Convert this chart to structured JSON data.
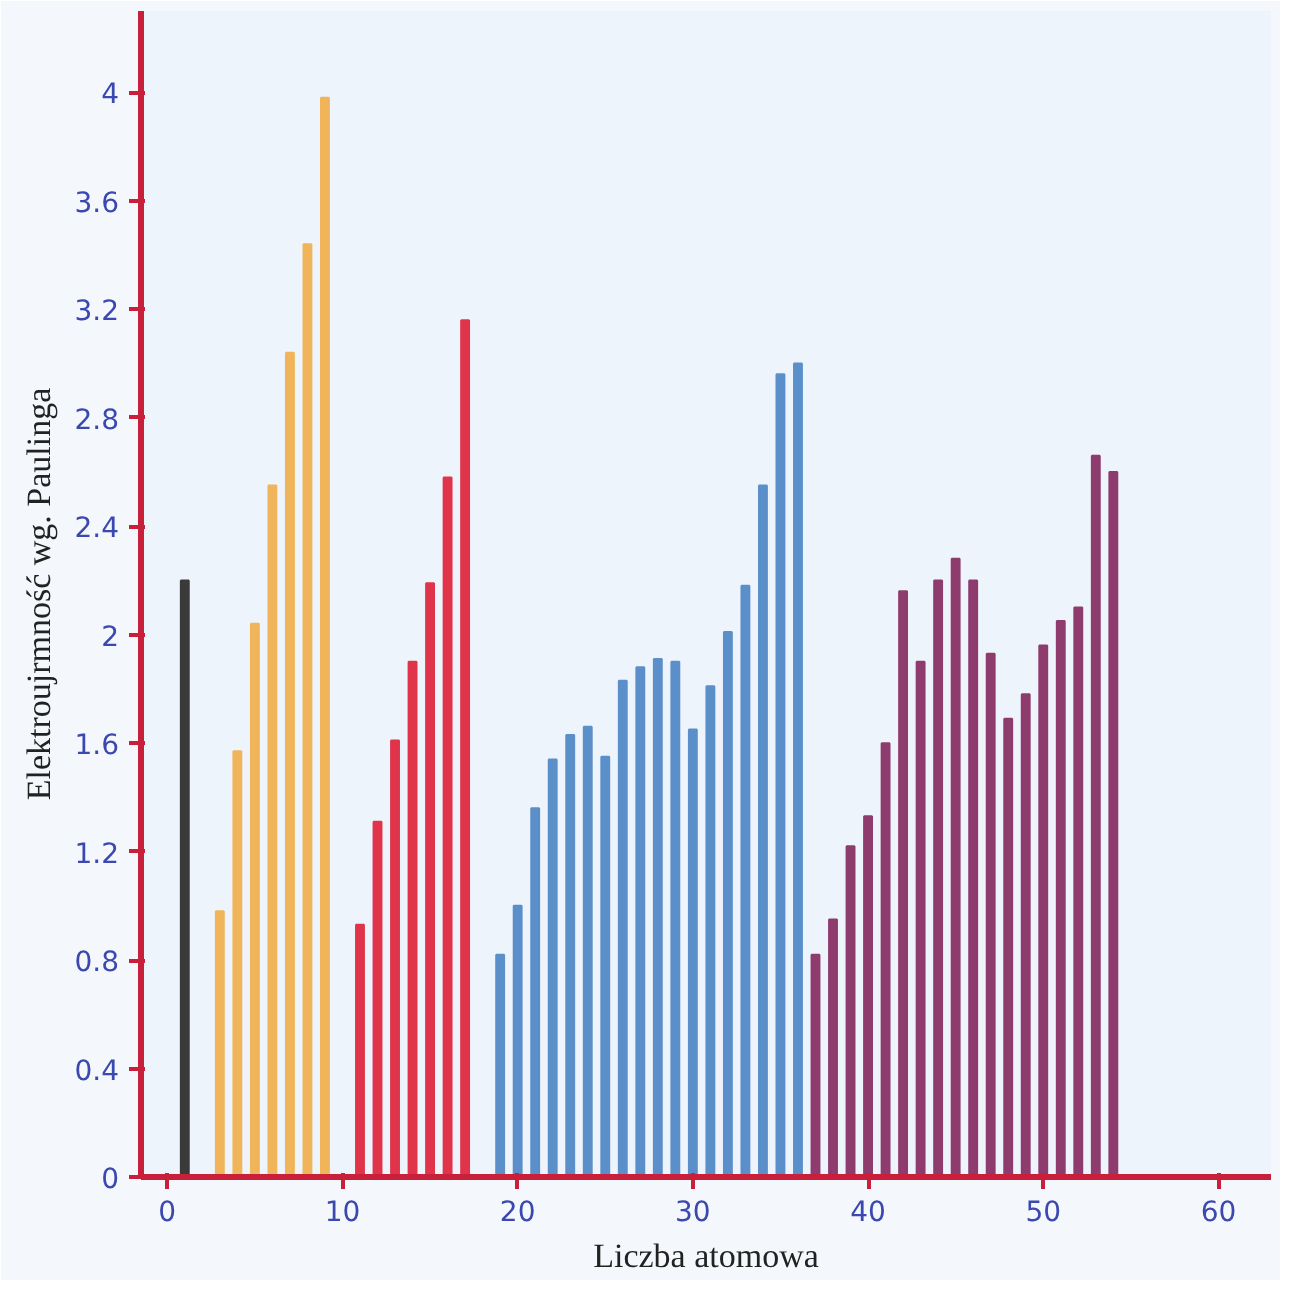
{
  "chart_data": {
    "type": "bar",
    "xlabel": "Liczba atomowa",
    "ylabel": "Elektroujrmność wg. Paulinga",
    "xlim": [
      -1.5,
      63
    ],
    "ylim": [
      0,
      4.3
    ],
    "xticks": [
      0,
      10,
      20,
      30,
      40,
      50,
      60
    ],
    "yticks": [
      0,
      0.4,
      0.8,
      1.2,
      1.6,
      2,
      2.4,
      2.8,
      3.2,
      3.6,
      4
    ],
    "grid": false,
    "series": [
      {
        "color": "#3a3a3a",
        "x": [
          1
        ],
        "values": [
          2.2
        ]
      },
      {
        "color": "#f0b45a",
        "x": [
          3,
          4,
          5,
          6,
          7,
          8,
          9
        ],
        "values": [
          0.98,
          1.57,
          2.04,
          2.55,
          3.04,
          3.44,
          3.98
        ]
      },
      {
        "color": "#e0344a",
        "x": [
          11,
          12,
          13,
          14,
          15,
          16,
          17
        ],
        "values": [
          0.93,
          1.31,
          1.61,
          1.9,
          2.19,
          2.58,
          3.16
        ]
      },
      {
        "color": "#5b8fc9",
        "x": [
          19,
          20,
          21,
          22,
          23,
          24,
          25,
          26,
          27,
          28,
          29,
          30,
          31,
          32,
          33,
          34,
          35,
          36
        ],
        "values": [
          0.82,
          1.0,
          1.36,
          1.54,
          1.63,
          1.66,
          1.55,
          1.83,
          1.88,
          1.91,
          1.9,
          1.65,
          1.81,
          2.01,
          2.18,
          2.55,
          2.96,
          3.0
        ]
      },
      {
        "color": "#8e3b6e",
        "x": [
          37,
          38,
          39,
          40,
          41,
          42,
          43,
          44,
          45,
          46,
          47,
          48,
          49,
          50,
          51,
          52,
          53,
          54
        ],
        "values": [
          0.82,
          0.95,
          1.22,
          1.33,
          1.6,
          2.16,
          1.9,
          2.2,
          2.28,
          2.2,
          1.93,
          1.69,
          1.78,
          1.96,
          2.05,
          2.1,
          2.66,
          2.6
        ]
      }
    ]
  }
}
